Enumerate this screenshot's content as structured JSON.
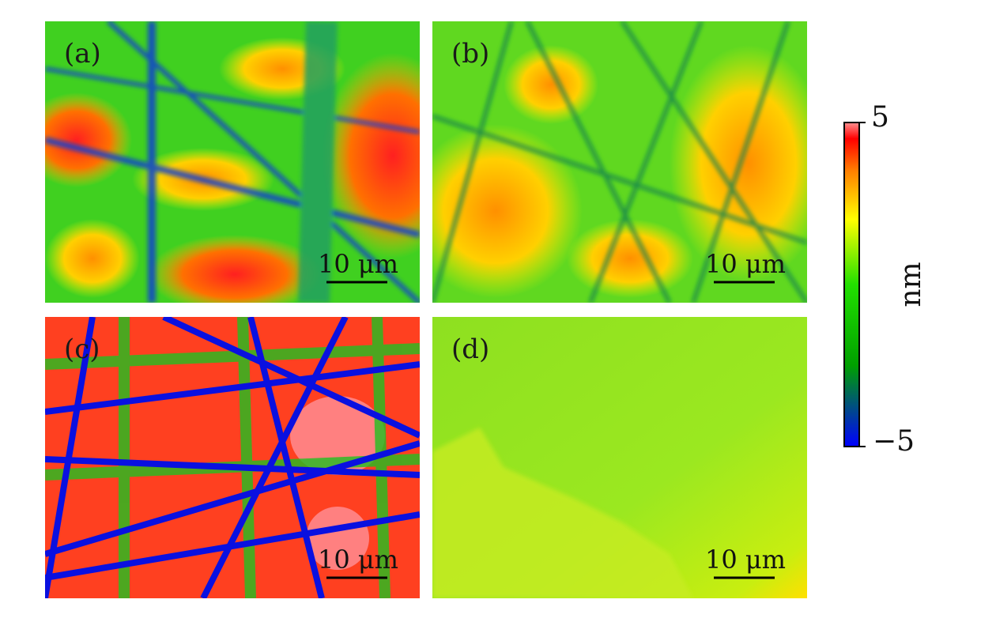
{
  "panels": [
    {
      "label": "(a)",
      "scale_bar": "10 μm"
    },
    {
      "label": "(b)",
      "scale_bar": "10 μm"
    },
    {
      "label": "(c)",
      "scale_bar": "10 μm"
    },
    {
      "label": "(d)",
      "scale_bar": "10 μm"
    }
  ],
  "colorbar": {
    "label": "nm",
    "range": [
      {
        "value": -5,
        "label": "−5"
      },
      5
    ],
    "ticks": [
      5,
      {
        "value": -5,
        "label": "−5"
      }
    ]
  }
}
